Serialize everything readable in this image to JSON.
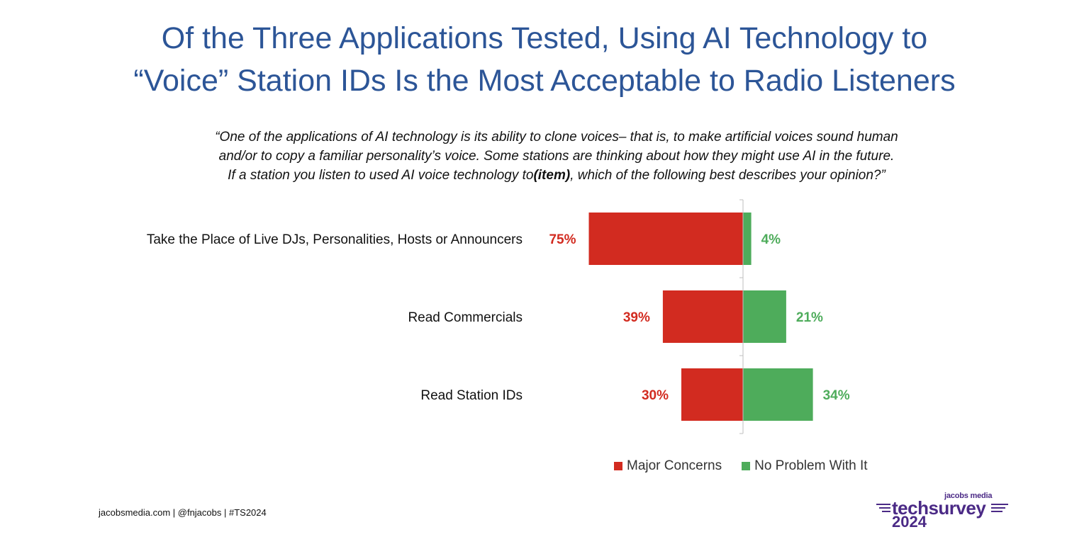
{
  "title": {
    "line1": "Of the Three Applications Tested, Using AI Technology to",
    "line2": "“Voice” Station IDs Is the Most Acceptable to Radio Listeners"
  },
  "question": {
    "line1": "“One of the applications of AI technology is its ability to clone voices– that is, to make artificial voices sound human",
    "line2": "and/or to copy a familiar personality’s voice. Some stations are thinking about how they might use AI in the future.",
    "line3_pre": "If a station you listen to used AI voice technology to",
    "line3_item": "(item)",
    "line3_post": ", which of the following best describes your opinion?”"
  },
  "chart_data": {
    "type": "bar",
    "orientation": "horizontal-diverging",
    "categories": [
      "Take the Place of Live DJs, Personalities, Hosts or Announcers",
      "Read Commercials",
      "Read Station IDs"
    ],
    "series": [
      {
        "name": "Major Concerns",
        "values": [
          75,
          39,
          30
        ],
        "labels": [
          "75%",
          "39%",
          "30%"
        ],
        "color": "#d22b20"
      },
      {
        "name": "No Problem With It",
        "values": [
          4,
          21,
          34
        ],
        "labels": [
          "4%",
          "21%",
          "34%"
        ],
        "color": "#4eac5b"
      }
    ],
    "unit": "%",
    "legend_position": "bottom-right"
  },
  "footer": {
    "text": "jacobsmedia.com | @fnjacobs | #TS2024"
  },
  "logo": {
    "small": "jacobs media",
    "main": "techsurvey",
    "year": "2024",
    "color": "#4b2a86"
  }
}
